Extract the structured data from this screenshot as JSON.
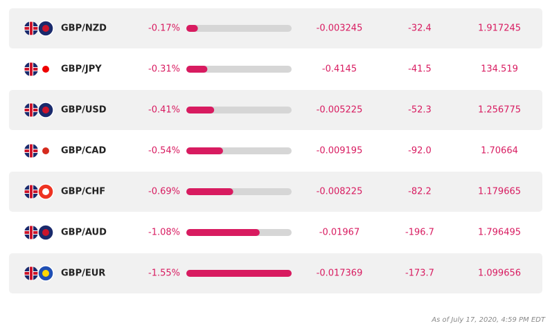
{
  "table": {
    "rows": [
      {
        "pair": "GBP/NZD",
        "change": -0.17,
        "change_label": "-0.17%",
        "change_abs": "-0.003245",
        "pips": "-32.4",
        "price": "1.917245"
      },
      {
        "pair": "GBP/JPY",
        "change": -0.31,
        "change_label": "-0.31%",
        "change_abs": "-0.4145",
        "pips": "-41.5",
        "price": "134.519"
      },
      {
        "pair": "GBP/USD",
        "change": -0.41,
        "change_label": "-0.41%",
        "change_abs": "-0.005225",
        "pips": "-52.3",
        "price": "1.256775"
      },
      {
        "pair": "GBP/CAD",
        "change": -0.54,
        "change_label": "-0.54%",
        "change_abs": "-0.009195",
        "pips": "-92.0",
        "price": "1.70664"
      },
      {
        "pair": "GBP/CHF",
        "change": -0.69,
        "change_label": "-0.69%",
        "change_abs": "-0.008225",
        "pips": "-82.2",
        "price": "1.179665"
      },
      {
        "pair": "GBP/AUD",
        "change": -1.08,
        "change_label": "-1.08%",
        "change_abs": "-0.01967",
        "pips": "-196.7",
        "price": "1.796495"
      },
      {
        "pair": "GBP/EUR",
        "change": -1.55,
        "change_label": "-1.55%",
        "change_abs": "-0.017369",
        "pips": "-173.7",
        "price": "1.099656"
      }
    ]
  },
  "footer": {
    "note": "As of July 17, 2020, 4:59 PM EDT"
  }
}
